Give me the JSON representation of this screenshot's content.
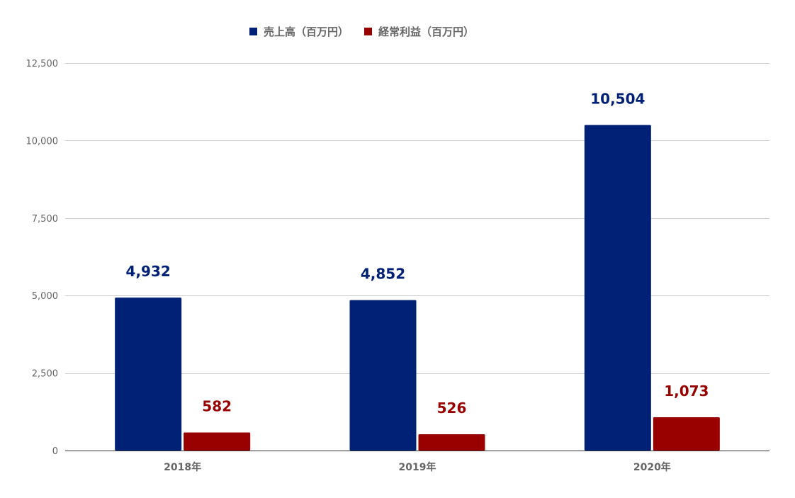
{
  "chart_data": {
    "type": "bar",
    "title": "",
    "xlabel": "",
    "ylabel": "",
    "categories": [
      "2018年",
      "2019年",
      "2020年"
    ],
    "series": [
      {
        "name": "売上高（百万円）",
        "color": "#002176",
        "values": [
          4932,
          4852,
          10504
        ],
        "labels": [
          "4,932",
          "4,852",
          "10,504"
        ]
      },
      {
        "name": "経常利益（百万円）",
        "color": "#990000",
        "values": [
          582,
          526,
          1073
        ],
        "labels": [
          "582",
          "526",
          "1,073"
        ]
      }
    ],
    "ylim": [
      0,
      12500
    ],
    "yticks": [
      0,
      2500,
      5000,
      7500,
      10000,
      12500
    ],
    "ytick_labels": [
      "0",
      "2,500",
      "5,000",
      "7,500",
      "10,000",
      "12,500"
    ],
    "grid": true,
    "legend_position": "top-center"
  }
}
